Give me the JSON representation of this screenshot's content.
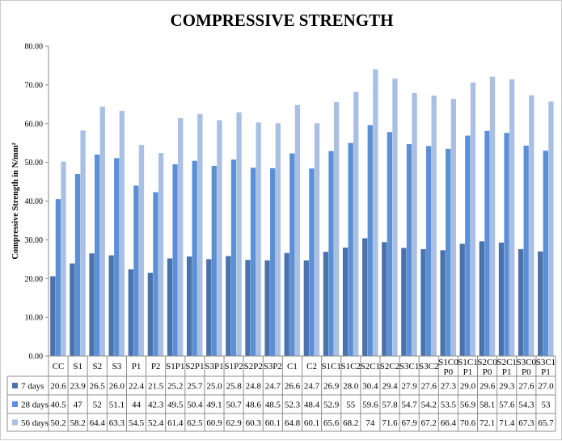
{
  "chart_data": {
    "type": "bar",
    "title": "COMPRESSIVE STRENGTH",
    "ylabel": "Compressive Strength in N/mm²",
    "ylim": [
      0,
      80
    ],
    "ytick_labels": [
      "0.00",
      "10.00",
      "20.00",
      "30.00",
      "40.00",
      "50.00",
      "60.00",
      "70.00",
      "80.00"
    ],
    "grid": false,
    "legend": "data-table",
    "categories": [
      "CC",
      "S1",
      "S2",
      "S3",
      "P1",
      "P2",
      "S1P1",
      "S2P1",
      "S3P1",
      "S1P2",
      "S2P2",
      "S3P2",
      "C1",
      "C2",
      "S1C1",
      "S1C2",
      "S2C1",
      "S2C2",
      "S3C1",
      "S3C2",
      "S1C0 P0",
      "S1C1 P1",
      "S2C0 P0",
      "S2C1 P1",
      "S3C0 P0",
      "S3C1 P1"
    ],
    "series": [
      {
        "name": "7 days",
        "color": "#4a72ad",
        "values": [
          20.6,
          23.9,
          26.5,
          26.0,
          22.4,
          21.5,
          25.2,
          25.7,
          25.0,
          25.8,
          24.8,
          24.7,
          26.6,
          24.7,
          26.9,
          28.0,
          30.4,
          29.4,
          27.9,
          27.6,
          27.3,
          29.0,
          29.6,
          29.3,
          27.6,
          27.0
        ],
        "table_values": [
          "20.6",
          "23.9",
          "26.5",
          "26.0",
          "22.4",
          "21.5",
          "25.2",
          "25.7",
          "25.0",
          "25.8",
          "24.8",
          "24.7",
          "26.6",
          "24.7",
          "26.9",
          "28.0",
          "30.4",
          "29.4",
          "27.9",
          "27.6",
          "27.3",
          "29.0",
          "29.6",
          "29.3",
          "27.6",
          "27.0"
        ]
      },
      {
        "name": "28 days",
        "color": "#5b8fd6",
        "values": [
          40.5,
          47,
          52,
          51.1,
          44,
          42.3,
          49.5,
          50.4,
          49.1,
          50.7,
          48.6,
          48.5,
          52.3,
          48.4,
          52.9,
          55,
          59.6,
          57.8,
          54.7,
          54.2,
          53.5,
          56.9,
          58.1,
          57.6,
          54.3,
          53
        ],
        "table_values": [
          "40.5",
          "47",
          "52",
          "51.1",
          "44",
          "42.3",
          "49.5",
          "50.4",
          "49.1",
          "50.7",
          "48.6",
          "48.5",
          "52.3",
          "48.4",
          "52.9",
          "55",
          "59.6",
          "57.8",
          "54.7",
          "54.2",
          "53.5",
          "56.9",
          "58.1",
          "57.6",
          "54.3",
          "53"
        ]
      },
      {
        "name": "56 days",
        "color": "#a9bfe3",
        "values": [
          50.2,
          58.2,
          64.4,
          63.3,
          54.5,
          52.4,
          61.4,
          62.5,
          60.9,
          62.9,
          60.3,
          60.1,
          64.8,
          60.1,
          65.6,
          68.2,
          74,
          71.6,
          67.9,
          67.2,
          66.4,
          70.6,
          72.1,
          71.4,
          67.3,
          65.7
        ],
        "table_values": [
          "50.2",
          "58.2",
          "64.4",
          "63.3",
          "54.5",
          "52.4",
          "61.4",
          "62.5",
          "60.9",
          "62.9",
          "60.3",
          "60.1",
          "64.8",
          "60.1",
          "65.6",
          "68.2",
          "74",
          "71.6",
          "67.9",
          "67.2",
          "66.4",
          "70.6",
          "72.1",
          "71.4",
          "67.3",
          "65.7"
        ]
      }
    ]
  }
}
